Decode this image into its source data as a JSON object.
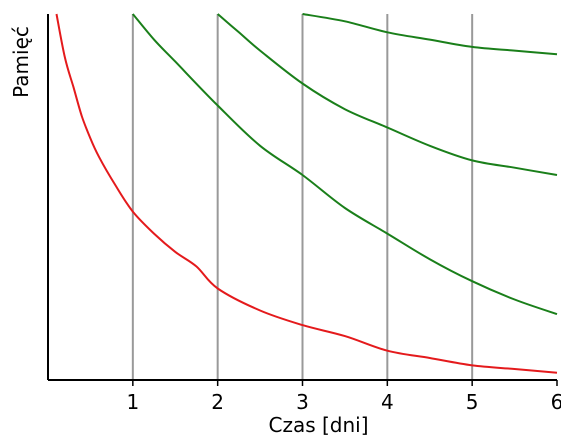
{
  "chart_data": {
    "type": "line",
    "title": "",
    "xlabel": "Czas [dni]",
    "ylabel": "Pamięć",
    "xlim": [
      0,
      6
    ],
    "ylim": [
      0,
      1
    ],
    "x_ticks": [
      1,
      2,
      3,
      4,
      5,
      6
    ],
    "x_tick_labels": [
      "1",
      "2",
      "3",
      "4",
      "5",
      "6"
    ],
    "y_ticks": [],
    "vertical_lines_at": [
      1,
      2,
      3,
      4,
      5
    ],
    "grid": false,
    "legend": "none",
    "colors": {
      "first_curve": "#e41a1c",
      "review_curves": "#1a7f1a",
      "vertical_lines": "#999999",
      "axes": "#000000"
    },
    "series": [
      {
        "color_key": "first_curve",
        "x": [
          0.1,
          0.2,
          0.3,
          0.4,
          0.5,
          0.6,
          0.8,
          1.0,
          1.25,
          1.5,
          1.75,
          2.0,
          2.5,
          3.0,
          3.5,
          4.0,
          4.5,
          5.0,
          5.5,
          6.0
        ],
        "y": [
          1.0,
          0.88,
          0.8,
          0.72,
          0.66,
          0.61,
          0.53,
          0.46,
          0.4,
          0.35,
          0.31,
          0.25,
          0.19,
          0.15,
          0.12,
          0.08,
          0.06,
          0.04,
          0.03,
          0.02
        ]
      },
      {
        "color_key": "review_curves",
        "x": [
          1.0,
          1.25,
          1.5,
          2.0,
          2.5,
          3.0,
          3.5,
          4.0,
          4.5,
          5.0,
          5.5,
          6.0
        ],
        "y": [
          1.0,
          0.93,
          0.87,
          0.75,
          0.64,
          0.56,
          0.47,
          0.4,
          0.33,
          0.27,
          0.22,
          0.18
        ]
      },
      {
        "color_key": "review_curves",
        "x": [
          2.0,
          2.25,
          2.5,
          3.0,
          3.5,
          4.0,
          4.5,
          5.0,
          5.5,
          6.0
        ],
        "y": [
          1.0,
          0.95,
          0.9,
          0.81,
          0.74,
          0.69,
          0.64,
          0.6,
          0.58,
          0.56
        ]
      },
      {
        "color_key": "review_curves",
        "x": [
          3.0,
          3.5,
          4.0,
          4.5,
          5.0,
          5.5,
          6.0
        ],
        "y": [
          1.0,
          0.98,
          0.95,
          0.93,
          0.91,
          0.9,
          0.89
        ]
      }
    ]
  }
}
